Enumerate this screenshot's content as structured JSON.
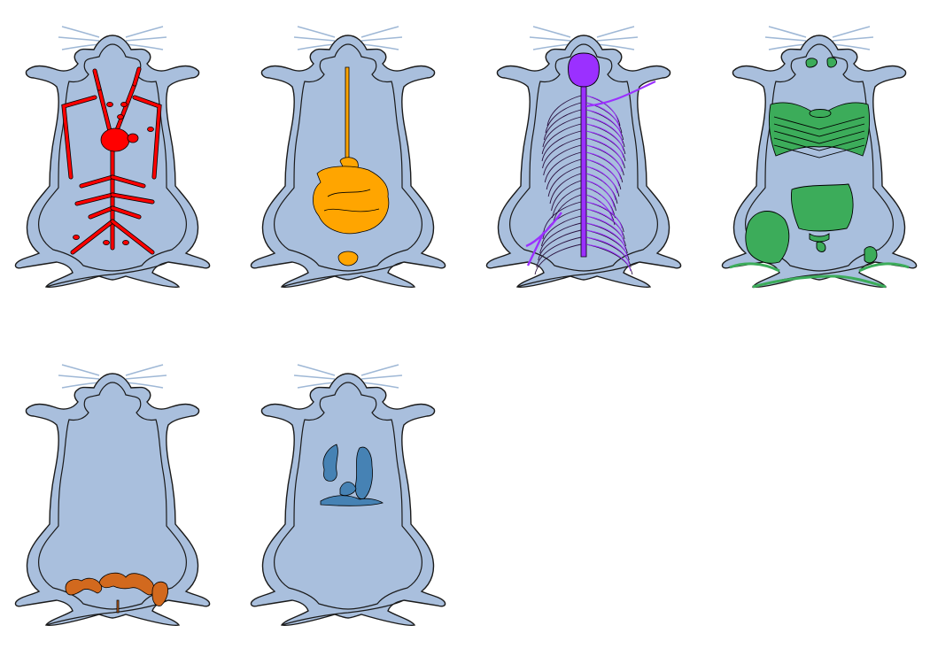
{
  "figure": {
    "panels": [
      {
        "organ_system": "circulatory-system",
        "color": "#ff0000"
      },
      {
        "organ_system": "digestive-system",
        "color": "#ffa500"
      },
      {
        "organ_system": "nervous-system",
        "color": "#9b30ff"
      },
      {
        "organ_system": "muscular-system",
        "color": "#3cac5a"
      },
      {
        "organ_system": "reproductive-system",
        "color": "#d2691e"
      },
      {
        "organ_system": "respiratory-system",
        "color": "#4682b4"
      }
    ],
    "body_color": "#a9bfdd",
    "outline_color": "#1a1a1a",
    "whisker_color": "#9fb8d6"
  }
}
